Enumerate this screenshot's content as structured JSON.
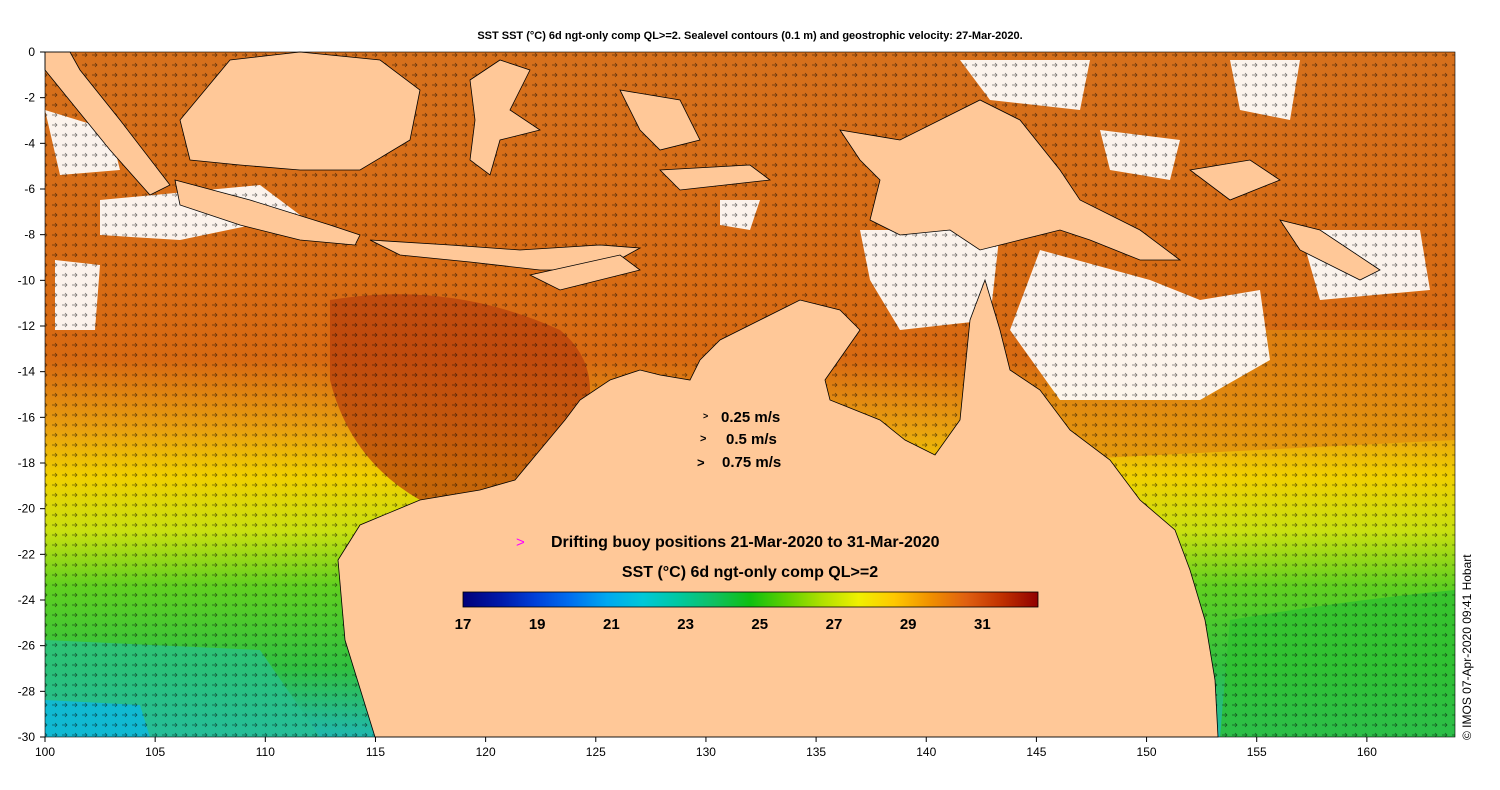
{
  "title": "SST SST (°C) 6d ngt-only comp QL>=2. Sealevel contours (0.1 m) and geostrophic velocity: 27-Mar-2020.",
  "axes": {
    "x_ticks": [
      "100",
      "105",
      "110",
      "115",
      "120",
      "125",
      "130",
      "135",
      "140",
      "145",
      "150",
      "155",
      "160"
    ],
    "y_ticks": [
      "0",
      "-2",
      "-4",
      "-6",
      "-8",
      "-10",
      "-12",
      "-14",
      "-16",
      "-18",
      "-20",
      "-22",
      "-24",
      "-26",
      "-28",
      "-30"
    ],
    "lon_range": [
      100,
      164
    ],
    "lat_range": [
      -30,
      0
    ]
  },
  "velocity_key": {
    "symbols": [
      ">",
      ">",
      ">"
    ],
    "labels": [
      "0.25 m/s",
      "0.5 m/s",
      "0.75 m/s"
    ]
  },
  "buoy_legend": {
    "symbol": ">",
    "symbol_color": "#ff00ff",
    "text": "Drifting buoy positions 21-Mar-2020 to 31-Mar-2020"
  },
  "colorbar": {
    "title": "SST (°C) 6d ngt-only comp QL>=2",
    "range": [
      17,
      32.5
    ],
    "tick_labels": [
      "17",
      "19",
      "21",
      "23",
      "25",
      "27",
      "29",
      "31"
    ],
    "tick_values": [
      17,
      19,
      21,
      23,
      25,
      27,
      29,
      31
    ],
    "colors": [
      "#00007a",
      "#0018a8",
      "#0040d8",
      "#0070f0",
      "#00a8f0",
      "#00c8d8",
      "#00c8a0",
      "#10c060",
      "#10c010",
      "#60d000",
      "#b0e000",
      "#f0f000",
      "#ffc800",
      "#f09000",
      "#e06010",
      "#c03000",
      "#900000"
    ]
  },
  "credit": "© IMOS 07-Apr-2020 09:41 Hobart",
  "colors": {
    "land": "#ffc898",
    "cloud": "#ffffff",
    "warm_water": "#d06414",
    "hot_water": "#b03c0c",
    "tropical_orange": "#e88a10",
    "yellow_water": "#f0d000",
    "green_water": "#40c020",
    "cool_water": "#20c0a0"
  }
}
